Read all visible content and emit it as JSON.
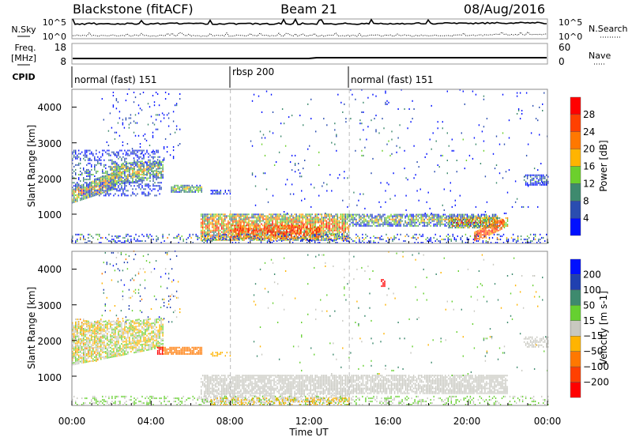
{
  "header": {
    "station": "Blackstone (fitACF)",
    "beam": "Beam 21",
    "date": "08/Aug/2016"
  },
  "noise_panel": {
    "left_label": "N.Sky",
    "right_label": "N.Search",
    "ticks": [
      "10^5",
      "10^0"
    ],
    "right_ticks": [
      "10^5",
      "10^0"
    ]
  },
  "freq_panel": {
    "label_1": "Freq.",
    "label_2": "[MHz]",
    "ticks": [
      "18",
      "8"
    ],
    "right_ticks": [
      "60",
      "0"
    ],
    "right_label": "Nave"
  },
  "cpid": {
    "label": "CPID",
    "segments": [
      {
        "name": "normal (fast) 151",
        "start_hour": 0
      },
      {
        "name": "rbsp 200",
        "start_hour": 8
      },
      {
        "name": "normal (fast) 151",
        "start_hour": 14
      }
    ]
  },
  "chart_data": [
    {
      "type": "heatmap",
      "title": "Power",
      "xlabel": "Time UT",
      "ylabel": "Slant Range [km]",
      "xlim": [
        0,
        24
      ],
      "ylim": [
        180,
        4500
      ],
      "xticks": [
        "00:00",
        "04:00",
        "08:00",
        "12:00",
        "16:00",
        "20:00",
        "00:00"
      ],
      "yticks": [
        "1000",
        "2000",
        "3000",
        "4000"
      ],
      "colorbar": {
        "label": "Power [dB]",
        "ticks": [
          "4",
          "8",
          "12",
          "16",
          "20",
          "24",
          "28"
        ],
        "colors": [
          "#0010ff",
          "#2a4db0",
          "#3e8a6e",
          "#6cd02c",
          "#ffb400",
          "#ff7800",
          "#ff4000",
          "#ff0000"
        ]
      },
      "regions": [
        {
          "t0": 0,
          "t1": 2.2,
          "r0": 1300,
          "r1": 1700,
          "r0e": 1700,
          "r1e": 2200,
          "value": 20,
          "density": 0.9,
          "spread": 8
        },
        {
          "t0": 0,
          "t1": 4.5,
          "r0": 1500,
          "r1": 2800,
          "value": 8,
          "density": 0.35,
          "spread": 6
        },
        {
          "t0": 2,
          "t1": 4.6,
          "r0": 1800,
          "r1": 2400,
          "r0e": 2000,
          "r1e": 2500,
          "value": 16,
          "density": 0.7,
          "spread": 8
        },
        {
          "t0": 1.5,
          "t1": 5.5,
          "r0": 2500,
          "r1": 4500,
          "value": 6,
          "density": 0.06,
          "spread": 6
        },
        {
          "t0": 5,
          "t1": 6.6,
          "r0": 1600,
          "r1": 1800,
          "value": 14,
          "density": 0.8,
          "spread": 6
        },
        {
          "t0": 7,
          "t1": 8,
          "r0": 1550,
          "r1": 1650,
          "value": 6,
          "density": 0.6,
          "spread": 4
        },
        {
          "t0": 6.5,
          "t1": 14,
          "r0": 250,
          "r1": 1000,
          "value": 22,
          "density": 0.85,
          "spread": 10
        },
        {
          "t0": 8,
          "t1": 12.5,
          "r0": 300,
          "r1": 700,
          "value": 28,
          "density": 0.6,
          "spread": 6
        },
        {
          "t0": 14,
          "t1": 21.5,
          "r0": 650,
          "r1": 1000,
          "value": 14,
          "density": 0.75,
          "spread": 8
        },
        {
          "t0": 19,
          "t1": 22,
          "r0": 600,
          "r1": 900,
          "value": 22,
          "density": 0.7,
          "spread": 8
        },
        {
          "t0": 20.3,
          "t1": 21.8,
          "r0": 200,
          "r1": 500,
          "r0e": 600,
          "r1e": 900,
          "value": 28,
          "density": 0.8,
          "spread": 6
        },
        {
          "t0": 22.8,
          "t1": 24,
          "r0": 1800,
          "r1": 2100,
          "value": 8,
          "density": 0.6,
          "spread": 6
        },
        {
          "t0": 0,
          "t1": 24,
          "r0": 180,
          "r1": 450,
          "value": 10,
          "density": 0.25,
          "spread": 12
        },
        {
          "t0": 9,
          "t1": 24,
          "r0": 1000,
          "r1": 4500,
          "value": 8,
          "density": 0.02,
          "spread": 8
        }
      ]
    },
    {
      "type": "heatmap",
      "title": "Velocity",
      "xlabel": "Time UT",
      "ylabel": "Slant Range [km]",
      "xlim": [
        0,
        24
      ],
      "ylim": [
        180,
        4500
      ],
      "xticks": [
        "00:00",
        "04:00",
        "08:00",
        "12:00",
        "16:00",
        "20:00",
        "00:00"
      ],
      "yticks": [
        "1000",
        "2000",
        "3000",
        "4000"
      ],
      "colorbar": {
        "label": "Velocity [m s-1]",
        "ticks": [
          "200",
          "100",
          "50",
          "15",
          "-15",
          "-50",
          "-100",
          "-200"
        ],
        "colors": [
          "#0010ff",
          "#2040b0",
          "#3e8a6e",
          "#66d030",
          "#c8c8c0",
          "#ffb400",
          "#ff7800",
          "#ff4000",
          "#ff0000"
        ]
      },
      "regions": [
        {
          "t0": 0,
          "t1": 4.6,
          "r0": 1300,
          "r1": 2500,
          "r0e": 1800,
          "r1e": 2600,
          "value": 0,
          "density": 0.75,
          "spread": 40
        },
        {
          "t0": 0,
          "t1": 1.5,
          "r0": 1400,
          "r1": 2600,
          "value": -30,
          "density": 0.3,
          "spread": 30
        },
        {
          "t0": 1.5,
          "t1": 5.5,
          "r0": 2500,
          "r1": 4500,
          "value": 60,
          "density": 0.06,
          "spread": 150
        },
        {
          "t0": 4.3,
          "t1": 4.6,
          "r0": 1600,
          "r1": 1800,
          "value": -250,
          "density": 0.9,
          "spread": 20
        },
        {
          "t0": 4.6,
          "t1": 6.6,
          "r0": 1600,
          "r1": 1800,
          "value": -70,
          "density": 0.85,
          "spread": 20
        },
        {
          "t0": 7,
          "t1": 8,
          "r0": 1550,
          "r1": 1650,
          "value": -30,
          "density": 0.5,
          "spread": 10
        },
        {
          "t0": 6.5,
          "t1": 22,
          "r0": 500,
          "r1": 1000,
          "value": 0,
          "density": 0.8,
          "spread": 8
        },
        {
          "t0": 6.5,
          "t1": 14,
          "r0": 250,
          "r1": 500,
          "value": 0,
          "density": 0.6,
          "spread": 8
        },
        {
          "t0": 0,
          "t1": 24,
          "r0": 180,
          "r1": 450,
          "value": 20,
          "density": 0.3,
          "spread": 30
        },
        {
          "t0": 7,
          "t1": 14,
          "r0": 180,
          "r1": 400,
          "value": -30,
          "density": 0.35,
          "spread": 20
        },
        {
          "t0": 15.6,
          "t1": 15.8,
          "r0": 3500,
          "r1": 3700,
          "value": -250,
          "density": 0.8,
          "spread": 10
        },
        {
          "t0": 22.8,
          "t1": 24,
          "r0": 1800,
          "r1": 2100,
          "value": 0,
          "density": 0.6,
          "spread": 10
        },
        {
          "t0": 9,
          "t1": 24,
          "r0": 1000,
          "r1": 4500,
          "value": 30,
          "density": 0.015,
          "spread": 60
        }
      ]
    }
  ]
}
